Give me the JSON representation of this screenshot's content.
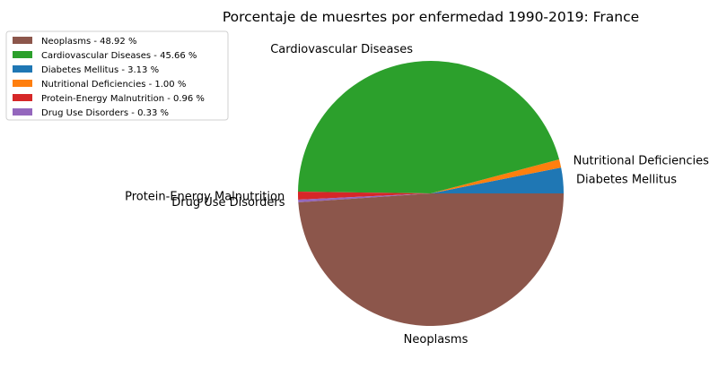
{
  "chart_data": {
    "type": "pie",
    "title": "Porcentaje de muesrtes por enfermedad 1990-2019: France",
    "slices": [
      {
        "label": "Diabetes Mellitus",
        "value": 3.13,
        "color": "#1f77b4"
      },
      {
        "label": "Nutritional Deficiencies",
        "value": 1.0,
        "color": "#ff7f0e"
      },
      {
        "label": "Cardiovascular Diseases",
        "value": 45.66,
        "color": "#2ca02c"
      },
      {
        "label": "Protein-Energy Malnutrition",
        "value": 0.96,
        "color": "#d62728"
      },
      {
        "label": "Drug Use Disorders",
        "value": 0.33,
        "color": "#9467bd"
      },
      {
        "label": "Neoplasms",
        "value": 48.92,
        "color": "#8c564b"
      }
    ],
    "legend": {
      "position": "top-left",
      "entries": [
        {
          "text": "Neoplasms - 48.92 %",
          "color": "#8c564b"
        },
        {
          "text": "Cardiovascular Diseases - 45.66 %",
          "color": "#2ca02c"
        },
        {
          "text": "Diabetes Mellitus - 3.13 %",
          "color": "#1f77b4"
        },
        {
          "text": "Nutritional Deficiencies - 1.00 %",
          "color": "#ff7f0e"
        },
        {
          "text": "Protein-Energy Malnutrition - 0.96 %",
          "color": "#d62728"
        },
        {
          "text": "Drug Use Disorders - 0.33 %",
          "color": "#9467bd"
        }
      ]
    }
  }
}
